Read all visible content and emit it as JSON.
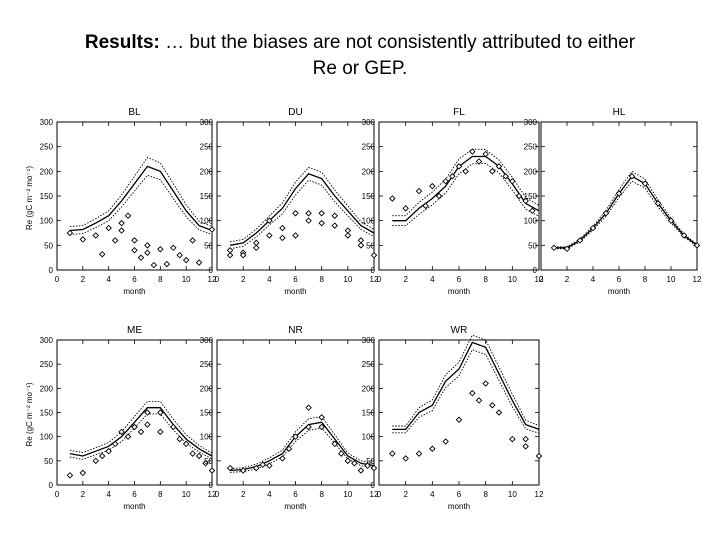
{
  "slide": {
    "title_bold": "Results:",
    "title_rest": " … but the biases are not consistently attributed to either",
    "title_line2": "Re or GEP."
  },
  "chart_data": [
    {
      "type": "line",
      "title": "BL",
      "xlabel": "month",
      "ylabel": "Re (gC m⁻² mo⁻¹)",
      "xlim": [
        0,
        12
      ],
      "ylim": [
        0,
        300
      ],
      "xticks": [
        0,
        2,
        4,
        6,
        8,
        10,
        12
      ],
      "yticks": [
        0,
        50,
        100,
        150,
        200,
        250,
        300
      ],
      "x": [
        1,
        2,
        3,
        4,
        5,
        6,
        7,
        8,
        9,
        10,
        11,
        12
      ],
      "model": [
        80,
        82,
        95,
        110,
        140,
        175,
        210,
        200,
        160,
        120,
        90,
        80
      ],
      "model_upper": [
        88,
        90,
        104,
        120,
        152,
        190,
        228,
        217,
        175,
        132,
        99,
        88
      ],
      "model_lower": [
        72,
        74,
        86,
        100,
        128,
        160,
        192,
        183,
        145,
        108,
        81,
        72
      ],
      "obs": [
        [
          1,
          75
        ],
        [
          2,
          62
        ],
        [
          3,
          70
        ],
        [
          3.5,
          32
        ],
        [
          4,
          85
        ],
        [
          4.5,
          60
        ],
        [
          5,
          80
        ],
        [
          5,
          95
        ],
        [
          5.5,
          110
        ],
        [
          6,
          60
        ],
        [
          6,
          40
        ],
        [
          6.5,
          25
        ],
        [
          7,
          50
        ],
        [
          7,
          35
        ],
        [
          7.5,
          10
        ],
        [
          8,
          42
        ],
        [
          8.5,
          12
        ],
        [
          9,
          45
        ],
        [
          9.5,
          30
        ],
        [
          10,
          20
        ],
        [
          10.5,
          60
        ],
        [
          11,
          15
        ],
        [
          12,
          82
        ]
      ]
    },
    {
      "type": "line",
      "title": "DU",
      "xlabel": "month",
      "ylabel": "",
      "xlim": [
        0,
        12
      ],
      "ylim": [
        0,
        300
      ],
      "xticks": [
        0,
        2,
        4,
        6,
        8,
        10,
        12
      ],
      "yticks": [
        0,
        50,
        100,
        150,
        200,
        250,
        300
      ],
      "x": [
        1,
        2,
        3,
        4,
        5,
        6,
        7,
        8,
        9,
        10,
        11,
        12
      ],
      "model": [
        50,
        55,
        75,
        100,
        125,
        165,
        195,
        185,
        150,
        120,
        90,
        75
      ],
      "model_upper": [
        57,
        62,
        83,
        109,
        136,
        178,
        208,
        198,
        162,
        130,
        98,
        82
      ],
      "model_lower": [
        43,
        48,
        67,
        91,
        114,
        152,
        182,
        172,
        138,
        110,
        82,
        68
      ],
      "obs": [
        [
          1,
          40
        ],
        [
          1,
          30
        ],
        [
          2,
          35
        ],
        [
          2,
          30
        ],
        [
          3,
          55
        ],
        [
          3,
          45
        ],
        [
          4,
          70
        ],
        [
          4,
          100
        ],
        [
          5,
          85
        ],
        [
          5,
          65
        ],
        [
          6,
          115
        ],
        [
          6,
          70
        ],
        [
          7,
          115
        ],
        [
          7,
          100
        ],
        [
          8,
          115
        ],
        [
          8,
          95
        ],
        [
          9,
          110
        ],
        [
          9,
          90
        ],
        [
          10,
          80
        ],
        [
          10,
          70
        ],
        [
          11,
          60
        ],
        [
          11,
          50
        ],
        [
          12,
          30
        ]
      ]
    },
    {
      "type": "line",
      "title": "FL",
      "xlabel": "month",
      "ylabel": "",
      "xlim": [
        0,
        12
      ],
      "ylim": [
        0,
        300
      ],
      "xticks": [
        0,
        2,
        4,
        6,
        8,
        10,
        12
      ],
      "yticks": [
        0,
        50,
        100,
        150,
        200,
        250,
        300
      ],
      "x": [
        1,
        2,
        3,
        4,
        5,
        6,
        7,
        8,
        9,
        10,
        11,
        12
      ],
      "model": [
        100,
        100,
        125,
        145,
        170,
        210,
        230,
        230,
        210,
        175,
        135,
        120
      ],
      "model_upper": [
        110,
        110,
        137,
        158,
        184,
        225,
        245,
        244,
        223,
        188,
        147,
        131
      ],
      "model_lower": [
        90,
        90,
        113,
        132,
        156,
        195,
        215,
        216,
        197,
        162,
        123,
        109
      ],
      "obs": [
        [
          1,
          145
        ],
        [
          2,
          125
        ],
        [
          3,
          160
        ],
        [
          3.5,
          130
        ],
        [
          4,
          170
        ],
        [
          4.5,
          150
        ],
        [
          5,
          180
        ],
        [
          5.5,
          190
        ],
        [
          6,
          210
        ],
        [
          6.5,
          200
        ],
        [
          7,
          240
        ],
        [
          7.5,
          220
        ],
        [
          8,
          235
        ],
        [
          8.5,
          200
        ],
        [
          9,
          210
        ],
        [
          9.5,
          190
        ],
        [
          10,
          180
        ],
        [
          10.5,
          150
        ],
        [
          11,
          140
        ],
        [
          11.5,
          120
        ]
      ]
    },
    {
      "type": "line",
      "title": "HL",
      "xlabel": "month",
      "ylabel": "",
      "xlim": [
        0,
        12
      ],
      "ylim": [
        0,
        300
      ],
      "xticks": [
        0,
        2,
        4,
        6,
        8,
        10,
        12
      ],
      "yticks": [
        0,
        50,
        100,
        150,
        200,
        250,
        300
      ],
      "x": [
        1,
        2,
        3,
        4,
        5,
        6,
        7,
        8,
        9,
        10,
        11,
        12
      ],
      "model": [
        45,
        45,
        60,
        85,
        115,
        155,
        190,
        175,
        135,
        100,
        70,
        50
      ],
      "model_upper": [
        47,
        47,
        63,
        89,
        121,
        163,
        200,
        184,
        142,
        105,
        73,
        52
      ],
      "model_lower": [
        43,
        43,
        57,
        81,
        109,
        147,
        180,
        166,
        128,
        95,
        67,
        48
      ],
      "obs": [
        [
          1,
          45
        ],
        [
          2,
          43
        ],
        [
          3,
          60
        ],
        [
          4,
          85
        ],
        [
          5,
          115
        ],
        [
          6,
          155
        ],
        [
          7,
          190
        ],
        [
          8,
          175
        ],
        [
          9,
          135
        ],
        [
          10,
          100
        ],
        [
          11,
          70
        ],
        [
          12,
          50
        ]
      ]
    },
    {
      "type": "line",
      "title": "ME",
      "xlabel": "month",
      "ylabel": "Re (gC m⁻² mo⁻¹)",
      "xlim": [
        0,
        12
      ],
      "ylim": [
        0,
        300
      ],
      "xticks": [
        0,
        2,
        4,
        6,
        8,
        10,
        12
      ],
      "yticks": [
        0,
        50,
        100,
        150,
        200,
        250,
        300
      ],
      "x": [
        1,
        2,
        3,
        4,
        5,
        6,
        7,
        8,
        9,
        10,
        11,
        12
      ],
      "model": [
        65,
        60,
        70,
        80,
        100,
        130,
        160,
        160,
        125,
        95,
        75,
        60
      ],
      "model_upper": [
        72,
        67,
        77,
        88,
        110,
        142,
        173,
        173,
        136,
        104,
        82,
        66
      ],
      "model_lower": [
        58,
        53,
        63,
        72,
        90,
        118,
        147,
        147,
        114,
        86,
        68,
        54
      ],
      "obs": [
        [
          1,
          20
        ],
        [
          2,
          25
        ],
        [
          3,
          50
        ],
        [
          3.5,
          60
        ],
        [
          4,
          70
        ],
        [
          4.5,
          85
        ],
        [
          5,
          110
        ],
        [
          5.5,
          100
        ],
        [
          6,
          120
        ],
        [
          6.5,
          110
        ],
        [
          7,
          150
        ],
        [
          7,
          125
        ],
        [
          8,
          150
        ],
        [
          8,
          110
        ],
        [
          9,
          120
        ],
        [
          9.5,
          95
        ],
        [
          10,
          85
        ],
        [
          10.5,
          65
        ],
        [
          11,
          60
        ],
        [
          11.5,
          45
        ],
        [
          12,
          30
        ]
      ]
    },
    {
      "type": "line",
      "title": "NR",
      "xlabel": "month",
      "ylabel": "",
      "xlim": [
        0,
        12
      ],
      "ylim": [
        0,
        300
      ],
      "xticks": [
        0,
        2,
        4,
        6,
        8,
        10,
        12
      ],
      "yticks": [
        0,
        50,
        100,
        150,
        200,
        250,
        300
      ],
      "x": [
        1,
        2,
        3,
        4,
        5,
        6,
        7,
        8,
        9,
        10,
        11,
        12
      ],
      "model": [
        30,
        32,
        38,
        50,
        65,
        100,
        125,
        130,
        95,
        60,
        45,
        40
      ],
      "model_upper": [
        34,
        36,
        43,
        56,
        72,
        110,
        137,
        142,
        104,
        66,
        50,
        44
      ],
      "model_lower": [
        26,
        28,
        33,
        44,
        58,
        90,
        113,
        118,
        86,
        54,
        40,
        36
      ],
      "obs": [
        [
          1,
          35
        ],
        [
          2,
          30
        ],
        [
          3,
          35
        ],
        [
          3.5,
          42
        ],
        [
          4,
          40
        ],
        [
          5,
          55
        ],
        [
          5.5,
          75
        ],
        [
          6,
          100
        ],
        [
          7,
          160
        ],
        [
          7,
          120
        ],
        [
          8,
          140
        ],
        [
          8,
          120
        ],
        [
          9,
          85
        ],
        [
          9.5,
          65
        ],
        [
          10,
          50
        ],
        [
          10.5,
          45
        ],
        [
          11,
          30
        ],
        [
          11.5,
          40
        ],
        [
          12,
          35
        ]
      ]
    },
    {
      "type": "line",
      "title": "WR",
      "xlabel": "month",
      "ylabel": "",
      "xlim": [
        0,
        12
      ],
      "ylim": [
        0,
        300
      ],
      "xticks": [
        0,
        2,
        4,
        6,
        8,
        10,
        12
      ],
      "yticks": [
        0,
        50,
        100,
        150,
        200,
        250,
        300
      ],
      "x": [
        1,
        2,
        3,
        4,
        5,
        6,
        7,
        8,
        9,
        10,
        11,
        12
      ],
      "model": [
        115,
        115,
        150,
        165,
        215,
        240,
        295,
        285,
        230,
        175,
        125,
        115
      ],
      "model_upper": [
        122,
        122,
        160,
        176,
        228,
        254,
        310,
        300,
        244,
        188,
        134,
        123
      ],
      "model_lower": [
        108,
        108,
        140,
        154,
        202,
        226,
        280,
        270,
        216,
        162,
        116,
        107
      ],
      "obs": [
        [
          1,
          65
        ],
        [
          2,
          55
        ],
        [
          3,
          65
        ],
        [
          4,
          75
        ],
        [
          5,
          90
        ],
        [
          6,
          135
        ],
        [
          7,
          190
        ],
        [
          7.5,
          175
        ],
        [
          8,
          210
        ],
        [
          8.5,
          165
        ],
        [
          9,
          150
        ],
        [
          10,
          95
        ],
        [
          11,
          95
        ],
        [
          11,
          80
        ],
        [
          12,
          60
        ]
      ]
    }
  ]
}
